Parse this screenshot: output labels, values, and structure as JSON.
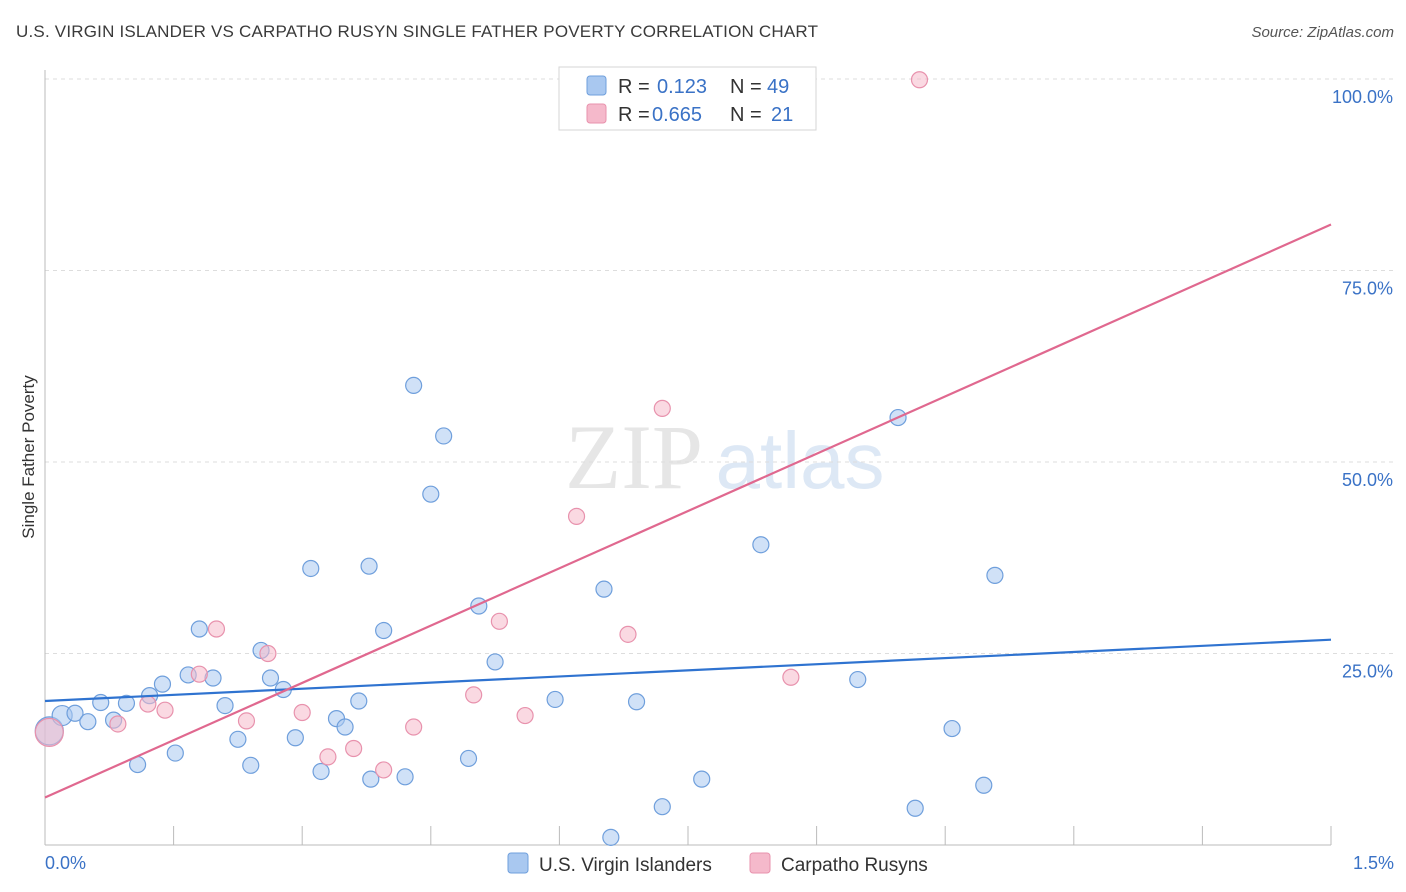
{
  "header": {
    "title": "U.S. VIRGIN ISLANDER VS CARPATHO RUSYN SINGLE FATHER POVERTY CORRELATION CHART",
    "source": "Source: ZipAtlas.com"
  },
  "watermark": {
    "zip": "ZIP",
    "atlas": "atlas"
  },
  "colors": {
    "blue_fill": "#a9c8f0",
    "blue_stroke": "#6f9fdc",
    "blue_line": "#2f73d0",
    "pink_fill": "#f5b9cb",
    "pink_stroke": "#e892ad",
    "pink_line": "#e0688f",
    "axis_text": "#3a72c6",
    "grid": "#dddddd"
  },
  "chart_data": {
    "type": "scatter",
    "title": "U.S. VIRGIN ISLANDER VS CARPATHO RUSYN SINGLE FATHER POVERTY CORRELATION CHART",
    "xlabel": "",
    "ylabel": "Single Father Poverty",
    "xlim": [
      0,
      1.5
    ],
    "ylim": [
      0,
      100
    ],
    "x_tick_labels": [
      "0.0%",
      "1.5%"
    ],
    "y_ticks": [
      25,
      50,
      75,
      100
    ],
    "y_tick_labels": [
      "25.0%",
      "50.0%",
      "75.0%",
      "100.0%"
    ],
    "legend_top": [
      {
        "r_label": "R =",
        "r_value": "0.123",
        "n_label": "N =",
        "n_value": "49"
      },
      {
        "r_label": "R =",
        "r_value": "0.665",
        "n_label": "N =",
        "n_value": "21"
      }
    ],
    "series": [
      {
        "name": "U.S. Virgin Islanders",
        "trend": [
          [
            0,
            18.8
          ],
          [
            1.5,
            26.8
          ]
        ],
        "points": [
          [
            0.005,
            14.9,
            14
          ],
          [
            0.02,
            16.9,
            10
          ],
          [
            0.035,
            17.2,
            8
          ],
          [
            0.05,
            16.1,
            8
          ],
          [
            0.065,
            18.6,
            8
          ],
          [
            0.08,
            16.3,
            8
          ],
          [
            0.095,
            18.5,
            8
          ],
          [
            0.108,
            10.5,
            8
          ],
          [
            0.122,
            19.5,
            8
          ],
          [
            0.137,
            21.0,
            8
          ],
          [
            0.152,
            12.0,
            8
          ],
          [
            0.167,
            22.2,
            8
          ],
          [
            0.18,
            28.2,
            8
          ],
          [
            0.196,
            21.8,
            8
          ],
          [
            0.21,
            18.2,
            8
          ],
          [
            0.225,
            13.8,
            8
          ],
          [
            0.24,
            10.4,
            8
          ],
          [
            0.252,
            25.4,
            8
          ],
          [
            0.263,
            21.8,
            8
          ],
          [
            0.278,
            20.3,
            8
          ],
          [
            0.292,
            14.0,
            8
          ],
          [
            0.31,
            36.1,
            8
          ],
          [
            0.322,
            9.6,
            8
          ],
          [
            0.34,
            16.5,
            8
          ],
          [
            0.35,
            15.4,
            8
          ],
          [
            0.366,
            18.8,
            8
          ],
          [
            0.378,
            36.4,
            8
          ],
          [
            0.395,
            28.0,
            8
          ],
          [
            0.38,
            8.6,
            8
          ],
          [
            0.42,
            8.9,
            8
          ],
          [
            0.43,
            60.0,
            8
          ],
          [
            0.45,
            45.8,
            8
          ],
          [
            0.465,
            53.4,
            8
          ],
          [
            0.494,
            11.3,
            8
          ],
          [
            0.506,
            31.2,
            8
          ],
          [
            0.525,
            23.9,
            8
          ],
          [
            0.595,
            19.0,
            8
          ],
          [
            0.652,
            33.4,
            8
          ],
          [
            0.66,
            1.0,
            8
          ],
          [
            0.69,
            18.7,
            8
          ],
          [
            0.72,
            5.0,
            8
          ],
          [
            0.766,
            8.6,
            8
          ],
          [
            0.835,
            39.2,
            8
          ],
          [
            0.948,
            21.6,
            8
          ],
          [
            0.995,
            55.8,
            8
          ],
          [
            1.015,
            4.8,
            8
          ],
          [
            1.058,
            15.2,
            8
          ],
          [
            1.095,
            7.8,
            8
          ],
          [
            1.108,
            35.2,
            8
          ]
        ]
      },
      {
        "name": "Carpatho Rusyns",
        "trend": [
          [
            0,
            6.2
          ],
          [
            1.5,
            81.0
          ]
        ],
        "points": [
          [
            0.005,
            14.7,
            14
          ],
          [
            0.085,
            15.8,
            8
          ],
          [
            0.12,
            18.4,
            8
          ],
          [
            0.14,
            17.6,
            8
          ],
          [
            0.18,
            22.3,
            8
          ],
          [
            0.2,
            28.2,
            8
          ],
          [
            0.235,
            16.2,
            8
          ],
          [
            0.26,
            25.0,
            8
          ],
          [
            0.3,
            17.3,
            8
          ],
          [
            0.33,
            11.5,
            8
          ],
          [
            0.36,
            12.6,
            8
          ],
          [
            0.395,
            9.8,
            8
          ],
          [
            0.43,
            15.4,
            8
          ],
          [
            0.5,
            19.6,
            8
          ],
          [
            0.53,
            29.2,
            8
          ],
          [
            0.56,
            16.9,
            8
          ],
          [
            0.62,
            42.9,
            8
          ],
          [
            0.68,
            27.5,
            8
          ],
          [
            0.72,
            57.0,
            8
          ],
          [
            0.87,
            21.9,
            8
          ],
          [
            1.02,
            99.9,
            8
          ]
        ]
      }
    ],
    "legend_bottom": [
      "U.S. Virgin Islanders",
      "Carpatho Rusyns"
    ]
  }
}
